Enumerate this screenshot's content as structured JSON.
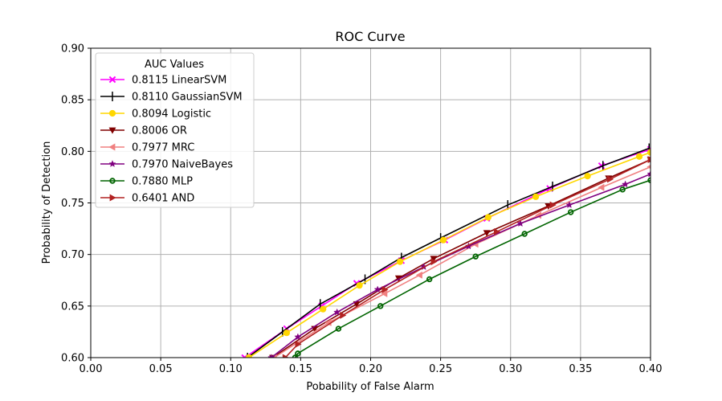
{
  "chart_data": {
    "type": "line",
    "title": "ROC Curve",
    "xlabel": "Pobability of False Alarm",
    "ylabel": "Probability of Detection",
    "xlim": [
      0.0,
      0.4
    ],
    "ylim": [
      0.6,
      0.9
    ],
    "xticks": [
      "0.00",
      "0.05",
      "0.10",
      "0.15",
      "0.20",
      "0.25",
      "0.30",
      "0.35",
      "0.40"
    ],
    "yticks": [
      "0.60",
      "0.65",
      "0.70",
      "0.75",
      "0.80",
      "0.85",
      "0.90"
    ],
    "grid": true,
    "legend": {
      "title": "AUC Values",
      "placement": "top-left"
    },
    "series": [
      {
        "name": "0.8115 LinearSVM",
        "color": "#ff00ff",
        "marker": "x",
        "x": [
          0.11,
          0.14,
          0.165,
          0.19,
          0.222,
          0.253,
          0.283,
          0.328,
          0.365,
          0.4
        ],
        "y": [
          0.6,
          0.628,
          0.65,
          0.672,
          0.694,
          0.714,
          0.735,
          0.764,
          0.786,
          0.802
        ]
      },
      {
        "name": "0.8110 GaussianSVM",
        "color": "#000000",
        "marker": "tick",
        "x": [
          0.112,
          0.137,
          0.164,
          0.196,
          0.222,
          0.25,
          0.298,
          0.33,
          0.366,
          0.399
        ],
        "y": [
          0.6,
          0.625,
          0.652,
          0.676,
          0.697,
          0.716,
          0.748,
          0.766,
          0.786,
          0.803
        ]
      },
      {
        "name": "0.8094 Logistic",
        "color": "#ffd700",
        "marker": "circle",
        "x": [
          0.113,
          0.14,
          0.166,
          0.192,
          0.221,
          0.252,
          0.284,
          0.318,
          0.355,
          0.392,
          0.4
        ],
        "y": [
          0.6,
          0.624,
          0.647,
          0.67,
          0.693,
          0.714,
          0.736,
          0.756,
          0.776,
          0.795,
          0.799
        ]
      },
      {
        "name": "0.8006 OR",
        "color": "#800000",
        "marker": "triangle-down",
        "x": [
          0.13,
          0.16,
          0.19,
          0.22,
          0.245,
          0.283,
          0.327,
          0.37,
          0.4
        ],
        "y": [
          0.6,
          0.628,
          0.652,
          0.677,
          0.696,
          0.721,
          0.747,
          0.774,
          0.792
        ]
      },
      {
        "name": "0.7977 MRC",
        "color": "#f08080",
        "marker": "triangle-left",
        "x": [
          0.131,
          0.17,
          0.21,
          0.235,
          0.275,
          0.32,
          0.365,
          0.4
        ],
        "y": [
          0.6,
          0.634,
          0.662,
          0.68,
          0.71,
          0.738,
          0.765,
          0.785
        ]
      },
      {
        "name": "0.7970 NaiveBayes",
        "color": "#800080",
        "marker": "star",
        "x": [
          0.129,
          0.148,
          0.176,
          0.205,
          0.238,
          0.27,
          0.307,
          0.342,
          0.382,
          0.4
        ],
        "y": [
          0.6,
          0.62,
          0.644,
          0.666,
          0.688,
          0.708,
          0.73,
          0.748,
          0.768,
          0.778
        ]
      },
      {
        "name": "0.7880 MLP",
        "color": "#006400",
        "marker": "circle-open",
        "x": [
          0.146,
          0.148,
          0.177,
          0.207,
          0.242,
          0.275,
          0.31,
          0.343,
          0.38,
          0.4
        ],
        "y": [
          0.6,
          0.604,
          0.628,
          0.65,
          0.676,
          0.698,
          0.72,
          0.741,
          0.763,
          0.772
        ]
      },
      {
        "name": "0.6401 AND",
        "color": "#b22222",
        "marker": "triangle-right",
        "x": [
          0.139,
          0.148,
          0.18,
          0.21,
          0.245,
          0.29,
          0.33,
          0.371,
          0.4
        ],
        "y": [
          0.6,
          0.613,
          0.641,
          0.666,
          0.693,
          0.722,
          0.748,
          0.773,
          0.792
        ]
      }
    ]
  }
}
